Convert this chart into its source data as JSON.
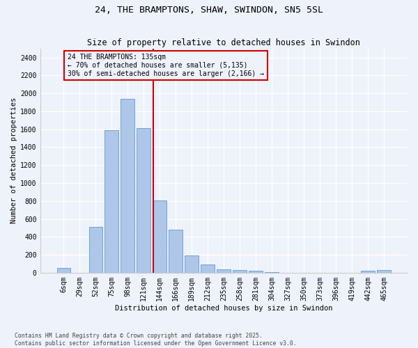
{
  "title": "24, THE BRAMPTONS, SHAW, SWINDON, SN5 5SL",
  "subtitle": "Size of property relative to detached houses in Swindon",
  "xlabel": "Distribution of detached houses by size in Swindon",
  "ylabel": "Number of detached properties",
  "categories": [
    "6sqm",
    "29sqm",
    "52sqm",
    "75sqm",
    "98sqm",
    "121sqm",
    "144sqm",
    "166sqm",
    "189sqm",
    "212sqm",
    "235sqm",
    "258sqm",
    "281sqm",
    "304sqm",
    "327sqm",
    "350sqm",
    "373sqm",
    "396sqm",
    "419sqm",
    "442sqm",
    "465sqm"
  ],
  "values": [
    55,
    0,
    510,
    1590,
    1940,
    1610,
    805,
    480,
    195,
    90,
    40,
    30,
    20,
    5,
    0,
    0,
    0,
    0,
    0,
    20,
    30
  ],
  "bar_color": "#aec6e8",
  "bar_edge_color": "#5b9bd5",
  "vline_color": "#cc0000",
  "ylim": [
    0,
    2500
  ],
  "yticks": [
    0,
    200,
    400,
    600,
    800,
    1000,
    1200,
    1400,
    1600,
    1800,
    2000,
    2200,
    2400
  ],
  "annotation_line1": "24 THE BRAMPTONS: 135sqm",
  "annotation_line2": "← 70% of detached houses are smaller (5,135)",
  "annotation_line3": "30% of semi-detached houses are larger (2,166) →",
  "annotation_box_color": "#cc0000",
  "footer": "Contains HM Land Registry data © Crown copyright and database right 2025.\nContains public sector information licensed under the Open Government Licence v3.0.",
  "bg_color": "#eef2fa",
  "grid_color": "#ffffff",
  "vline_pos": 5.61
}
